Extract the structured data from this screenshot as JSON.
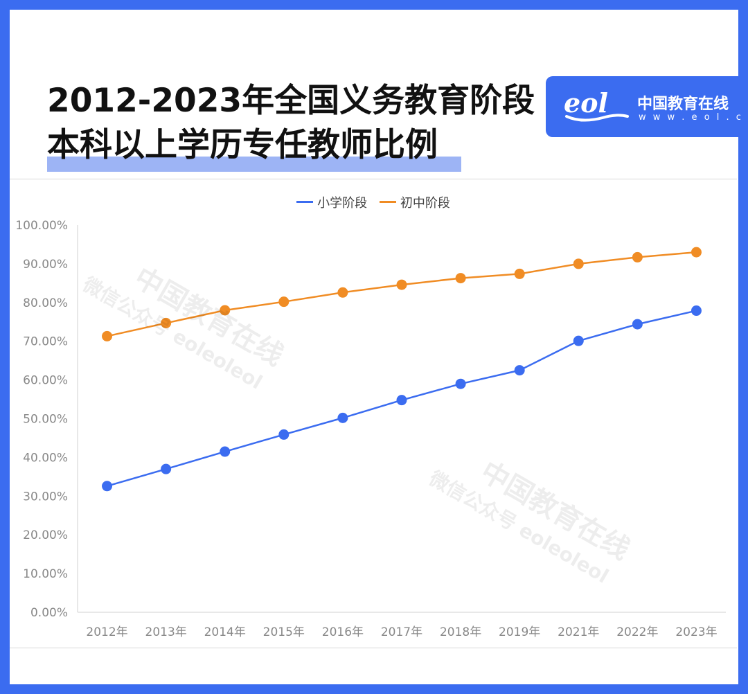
{
  "title": {
    "line1": "2012-2023年全国义务教育阶段",
    "line2": "本科以上学历专任教师比例"
  },
  "logo": {
    "mark": "eol",
    "name": "中国教育在线",
    "url": "w w w . e o l . c n"
  },
  "watermark": {
    "line1": "中国教育在线",
    "line2": "微信公众号 eoleoleol"
  },
  "colors": {
    "frame": "#3b6cf0",
    "primary_series": "#3b6cf0",
    "junior_series": "#f08c24",
    "title_highlight": "#9db4f5"
  },
  "chart_data": {
    "type": "line",
    "categories": [
      "2012年",
      "2013年",
      "2014年",
      "2015年",
      "2016年",
      "2017年",
      "2018年",
      "2019年",
      "2021年",
      "2022年",
      "2023年"
    ],
    "series": [
      {
        "name": "小学阶段",
        "color": "#3b6cf0",
        "values": [
          32.6,
          37.0,
          41.5,
          45.9,
          50.2,
          54.8,
          59.0,
          62.5,
          70.1,
          74.4,
          77.9
        ]
      },
      {
        "name": "初中阶段",
        "color": "#f08c24",
        "values": [
          71.3,
          74.7,
          78.0,
          80.2,
          82.6,
          84.6,
          86.3,
          87.4,
          90.0,
          91.7,
          93.0
        ]
      }
    ],
    "ylim": [
      0,
      100
    ],
    "yticks": [
      "0.00%",
      "10.00%",
      "20.00%",
      "30.00%",
      "40.00%",
      "50.00%",
      "60.00%",
      "70.00%",
      "80.00%",
      "90.00%",
      "100.00%"
    ],
    "legend_position": "top-center",
    "drop_lines": true,
    "grid": false
  }
}
